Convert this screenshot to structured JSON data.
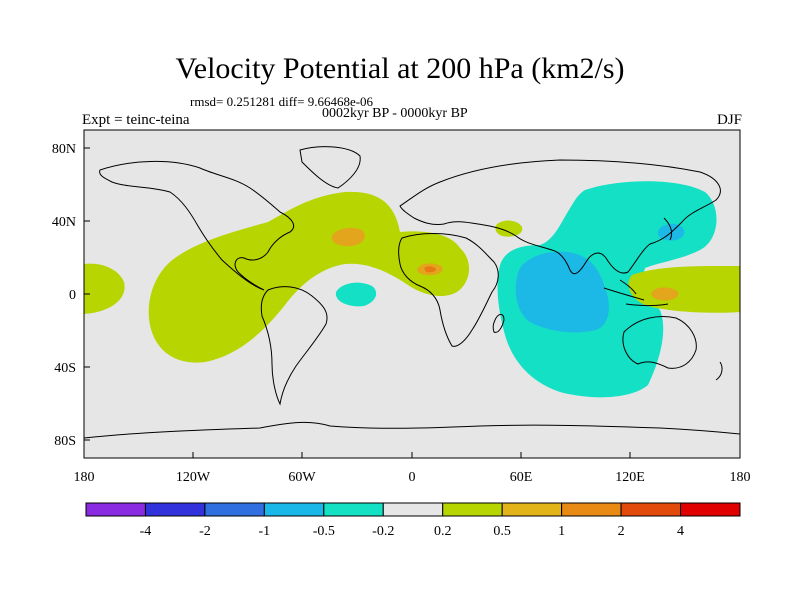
{
  "title": "Velocity Potential at 200 hPa (km2/s)",
  "stats": "rmsd= 0.251281 diff= 9.66468e-06",
  "subtitle": "0002kyr BP - 0000kyr BP",
  "experiment": "Expt = teinc-teina",
  "season": "DJF",
  "map": {
    "projection": "cylindrical equidistant",
    "background_color": "#e6e6e6",
    "lon_ticks": [
      "180",
      "120W",
      "60W",
      "0",
      "60E",
      "120E",
      "180"
    ],
    "lat_ticks": [
      "80N",
      "40N",
      "0",
      "40S",
      "80S"
    ],
    "contour_levels": [
      -4,
      -2,
      -1,
      -0.5,
      -0.2,
      0.2,
      0.5,
      1,
      2,
      4
    ],
    "fill_colors": {
      "positive_0.2_0.5": "#b7d500",
      "positive_0.5_1": "#e2a51b",
      "positive_1_2": "#e87a15",
      "negative_-0.5_-0.2": "#14e0c6",
      "negative_-1_-0.5": "#1cb8e6",
      "negative_-2_-1": "#2c6fe0"
    }
  },
  "colorbar": {
    "colors": [
      "#8a2be2",
      "#3232dc",
      "#2f6fe0",
      "#1ab8e8",
      "#14e0c4",
      "#e6e6e6",
      "#b7d500",
      "#e2b41a",
      "#e88a14",
      "#e24a0c",
      "#e00000"
    ],
    "labels": [
      "-4",
      "-2",
      "-1",
      "-0.5",
      "-0.2",
      "0.2",
      "0.5",
      "1",
      "2",
      "4"
    ]
  }
}
